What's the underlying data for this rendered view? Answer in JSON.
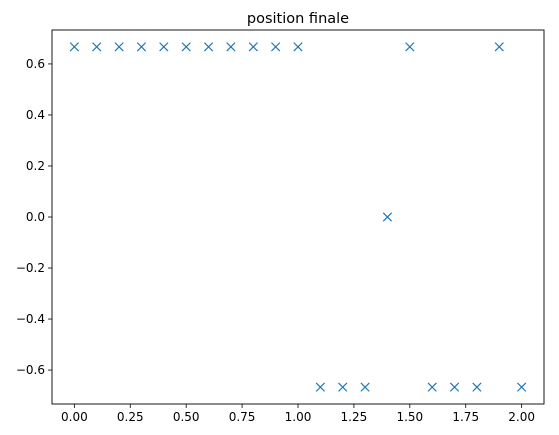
{
  "chart_data": {
    "type": "scatter",
    "title": "position finale",
    "xlabel": "",
    "ylabel": "",
    "marker": "x",
    "color": "#1f77b4",
    "grid": false,
    "xlim": [
      -0.1,
      2.1
    ],
    "ylim": [
      -0.733,
      0.733
    ],
    "xticks": [
      0.0,
      0.25,
      0.5,
      0.75,
      1.0,
      1.25,
      1.5,
      1.75,
      2.0
    ],
    "xtick_labels": [
      "0.00",
      "0.25",
      "0.50",
      "0.75",
      "1.00",
      "1.25",
      "1.50",
      "1.75",
      "2.00"
    ],
    "yticks": [
      0.6,
      0.4,
      0.2,
      0.0,
      -0.2,
      -0.4,
      -0.6
    ],
    "ytick_labels": [
      "0.6",
      "0.4",
      "0.2",
      "0.0",
      "−0.2",
      "−0.4",
      "−0.6"
    ],
    "series": [
      {
        "x": [
          0.0,
          0.1,
          0.2,
          0.3,
          0.4,
          0.5,
          0.6,
          0.7,
          0.8,
          0.9,
          1.0,
          1.1,
          1.2,
          1.3,
          1.4,
          1.5,
          1.6,
          1.7,
          1.8,
          1.9,
          2.0
        ],
        "y": [
          0.667,
          0.667,
          0.667,
          0.667,
          0.667,
          0.667,
          0.667,
          0.667,
          0.667,
          0.667,
          0.667,
          -0.667,
          -0.667,
          -0.667,
          0.0,
          0.667,
          -0.667,
          -0.667,
          -0.667,
          0.667,
          -0.667
        ]
      }
    ]
  }
}
